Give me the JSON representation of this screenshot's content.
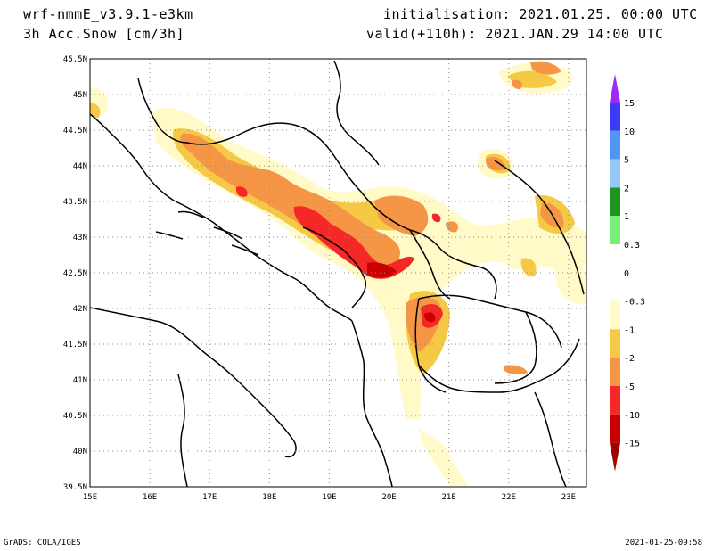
{
  "header": {
    "model": "wrf-nmmE_v3.9.1-e3km",
    "variable": "3h Acc.Snow [cm/3h]",
    "initialisation": "initialisation: 2021.01.25.  00:00 UTC",
    "valid": "valid(+110h): 2021.JAN.29 14:00 UTC"
  },
  "map": {
    "lon_range": [
      15,
      23.3
    ],
    "lat_range": [
      39.5,
      45.5
    ],
    "lon_ticks": [
      "15E",
      "16E",
      "17E",
      "18E",
      "19E",
      "20E",
      "21E",
      "22E",
      "23E"
    ],
    "lat_ticks": [
      "45.5N",
      "45N",
      "44.5N",
      "44N",
      "43.5N",
      "43N",
      "42.5N",
      "42N",
      "41.5N",
      "41N",
      "40.5N",
      "40N",
      "39.5N"
    ],
    "grid": "dotted",
    "projection": "lat-lon"
  },
  "colorbar": {
    "labels": [
      "15",
      "10",
      "5",
      "2",
      "1",
      "0.3",
      "0",
      "-0.3",
      "-1",
      "-2",
      "-5",
      "-10",
      "-15"
    ],
    "colors": [
      "#9a2cf5",
      "#3c3cf5",
      "#5096f5",
      "#96c8f5",
      "#1e961e",
      "#78f078",
      "#ffffff",
      "#ffffff",
      "#fffac8",
      "#f5c846",
      "#f59646",
      "#f52828",
      "#c80000",
      "#a00000"
    ]
  },
  "footer": {
    "left": "GrADS: COLA/IGES",
    "right": "2021-01-25-09:58"
  }
}
